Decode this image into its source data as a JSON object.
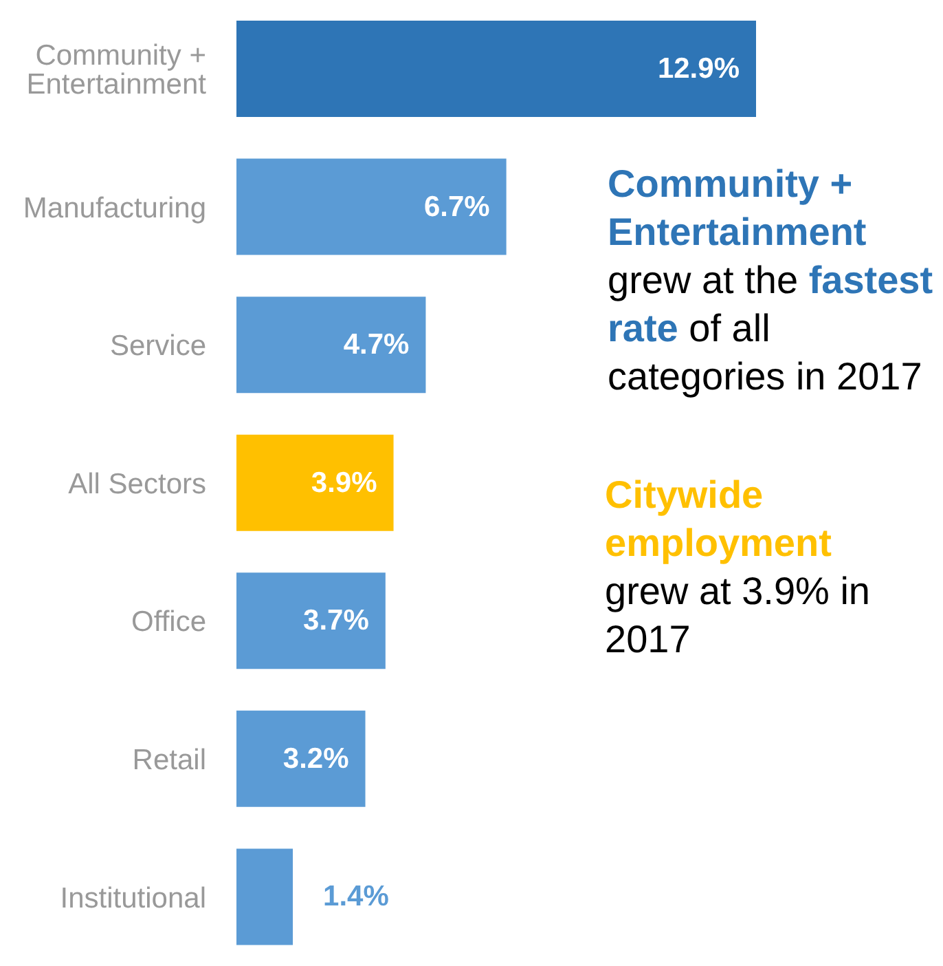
{
  "chart_data": {
    "type": "bar",
    "orientation": "horizontal",
    "tick_labels": "y",
    "categories": [
      "Community + Entertainment",
      "Manufacturing",
      "Service",
      "All Sectors",
      "Office",
      "Retail",
      "Institutional"
    ],
    "values": [
      12.9,
      6.7,
      4.7,
      3.9,
      3.7,
      3.2,
      1.4
    ],
    "value_labels": [
      "12.9%",
      "6.7%",
      "4.7%",
      "3.9%",
      "3.7%",
      "3.2%",
      "1.4%"
    ],
    "colors": [
      "#2e75b6",
      "#5b9bd5",
      "#5b9bd5",
      "#ffc000",
      "#5b9bd5",
      "#5b9bd5",
      "#5b9bd5"
    ],
    "annotations": [
      "Community + Entertainment",
      "grew at the",
      "fastest rate",
      "of all categories in 2017",
      "Citywide employment",
      "grew at 3.9% in 2017"
    ]
  }
}
